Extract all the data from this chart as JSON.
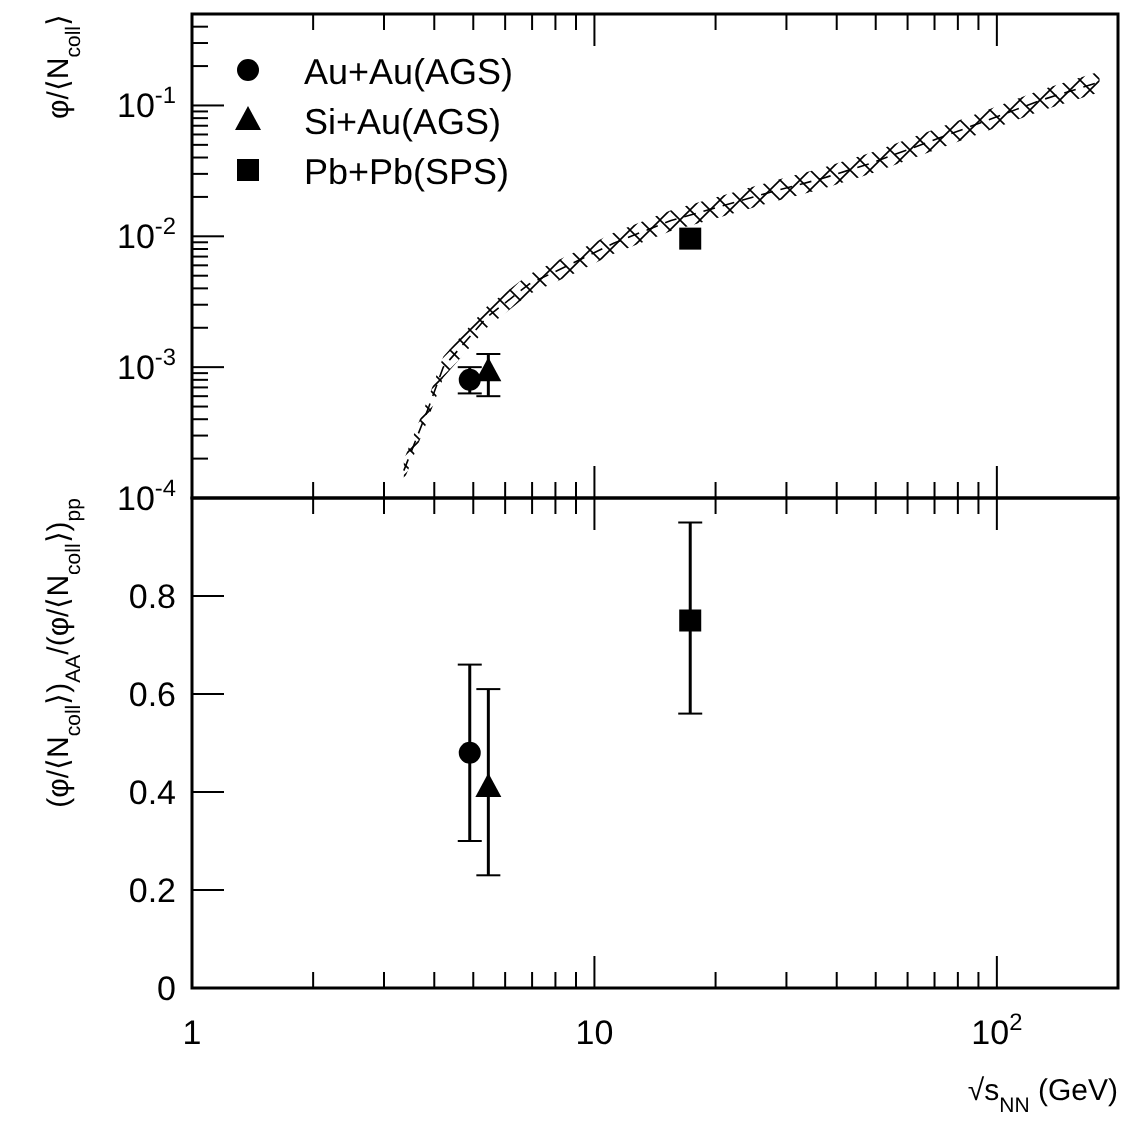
{
  "chart_data": [
    {
      "type": "scatter",
      "ylabel": "φ/⟨N$_{coll}$⟩",
      "log": "xy",
      "legend": "top left",
      "tick_labels": "y",
      "grid": false,
      "xlim": [
        1,
        200
      ],
      "xticks": [
        {
          "value": 2,
          "label": null
        },
        {
          "value": 3,
          "label": null
        },
        {
          "value": 4,
          "label": null
        },
        {
          "value": 5,
          "label": null
        },
        {
          "value": 6,
          "label": null
        },
        {
          "value": 7,
          "label": null
        },
        {
          "value": 8,
          "label": null
        },
        {
          "value": 9,
          "label": null
        },
        {
          "value": 10,
          "label": null
        },
        {
          "value": 20,
          "label": null
        },
        {
          "value": 30,
          "label": null
        },
        {
          "value": 40,
          "label": null
        },
        {
          "value": 50,
          "label": null
        },
        {
          "value": 60,
          "label": null
        },
        {
          "value": 70,
          "label": null
        },
        {
          "value": 80,
          "label": null
        },
        {
          "value": 90,
          "label": null
        },
        {
          "value": 100,
          "label": null
        }
      ],
      "ylim": [
        0.0001,
        0.5
      ],
      "yticks": [
        {
          "value": 0.0001,
          "label": "10$^{-4}$"
        },
        {
          "value": 0.0002,
          "label": null
        },
        {
          "value": 0.0003,
          "label": null
        },
        {
          "value": 0.0004,
          "label": null
        },
        {
          "value": 0.0005,
          "label": null
        },
        {
          "value": 0.0006,
          "label": null
        },
        {
          "value": 0.0007,
          "label": null
        },
        {
          "value": 0.0008,
          "label": null
        },
        {
          "value": 0.0009,
          "label": null
        },
        {
          "value": 0.001,
          "label": "10$^{-3}$"
        },
        {
          "value": 0.002,
          "label": null
        },
        {
          "value": 0.003,
          "label": null
        },
        {
          "value": 0.004,
          "label": null
        },
        {
          "value": 0.005,
          "label": null
        },
        {
          "value": 0.006,
          "label": null
        },
        {
          "value": 0.007,
          "label": null
        },
        {
          "value": 0.008,
          "label": null
        },
        {
          "value": 0.009,
          "label": null
        },
        {
          "value": 0.01,
          "label": "10$^{-2}$"
        },
        {
          "value": 0.02,
          "label": null
        },
        {
          "value": 0.03,
          "label": null
        },
        {
          "value": 0.04,
          "label": null
        },
        {
          "value": 0.05,
          "label": null
        },
        {
          "value": 0.06,
          "label": null
        },
        {
          "value": 0.07,
          "label": null
        },
        {
          "value": 0.08,
          "label": null
        },
        {
          "value": 0.09,
          "label": null
        },
        {
          "value": 0.1,
          "label": "10$^{-1}$"
        },
        {
          "value": 0.2,
          "label": null
        },
        {
          "value": 0.3,
          "label": null
        },
        {
          "value": 0.4,
          "label": null
        }
      ],
      "series": [
        {
          "type": "line",
          "color": "#000000",
          "line_style": "dashed",
          "marker": "none",
          "x": [
            3.36,
            3.88,
            4.21,
            5.4,
            6.87,
            8.8,
            11.2,
            15.5,
            20.7,
            27.6,
            36.6,
            48.8,
            67.6,
            93.5,
            129,
            180
          ],
          "values": [
            0.000162,
            0.0005,
            0.001,
            0.0024,
            0.0043,
            0.0062,
            0.0089,
            0.0132,
            0.017,
            0.0219,
            0.0275,
            0.0363,
            0.0525,
            0.076,
            0.11,
            0.151
          ],
          "lower": [
            0.000135,
            0.00042,
            0.00083,
            0.002,
            0.0036,
            0.0051,
            0.0074,
            0.011,
            0.0141,
            0.0182,
            0.0229,
            0.0302,
            0.0437,
            0.063,
            0.091,
            0.126
          ],
          "upper": [
            0.000195,
            0.0006,
            0.0012,
            0.0029,
            0.0051,
            0.0074,
            0.0107,
            0.0158,
            0.0204,
            0.0263,
            0.0331,
            0.0437,
            0.0631,
            0.091,
            0.132,
            0.182
          ]
        },
        {
          "name": "Au+Au(AGS)",
          "color": "#000000",
          "marker": "circle",
          "x": [
            4.9
          ],
          "values": [
            0.0008
          ],
          "errors": [
            [
              0.00063,
              0.001
            ]
          ]
        },
        {
          "name": "Si+Au(AGS)",
          "color": "#000000",
          "marker": "triangle",
          "x": [
            5.45
          ],
          "values": [
            0.00093
          ],
          "errors": [
            [
              0.0006,
              0.00126
            ]
          ]
        },
        {
          "name": "Pb+Pb(SPS)",
          "color": "#000000",
          "marker": "square",
          "x": [
            17.3
          ],
          "values": [
            0.0096
          ]
        }
      ]
    },
    {
      "type": "scatter",
      "xlabel": "√s$_{NN}$ (GeV)",
      "ylabel": "(φ/⟨N$_{coll}$⟩)$_{AA}$/(φ/⟨N$_{coll}$⟩)$_{pp}$",
      "log": "x",
      "grid": false,
      "xlim": [
        1,
        200
      ],
      "xticks": [
        1,
        {
          "value": 2,
          "label": null
        },
        {
          "value": 3,
          "label": null
        },
        {
          "value": 4,
          "label": null
        },
        {
          "value": 5,
          "label": null
        },
        {
          "value": 6,
          "label": null
        },
        {
          "value": 7,
          "label": null
        },
        {
          "value": 8,
          "label": null
        },
        {
          "value": 9,
          "label": null
        },
        10,
        {
          "value": 20,
          "label": null
        },
        {
          "value": 30,
          "label": null
        },
        {
          "value": 40,
          "label": null
        },
        {
          "value": 50,
          "label": null
        },
        {
          "value": 60,
          "label": null
        },
        {
          "value": 70,
          "label": null
        },
        {
          "value": 80,
          "label": null
        },
        {
          "value": 90,
          "label": null
        },
        {
          "value": 100,
          "label": "10$^{2}$"
        }
      ],
      "ylim": [
        0,
        1
      ],
      "yticks": [
        0,
        0.2,
        0.4,
        0.6,
        0.8
      ],
      "series": [
        {
          "color": "#000000",
          "marker": "circle",
          "x": [
            4.9
          ],
          "values": [
            0.48
          ],
          "errors": [
            [
              0.3,
              0.66
            ]
          ]
        },
        {
          "color": "#000000",
          "marker": "triangle",
          "x": [
            5.45
          ],
          "values": [
            0.41
          ],
          "errors": [
            [
              0.23,
              0.61
            ]
          ]
        },
        {
          "color": "#000000",
          "marker": "square",
          "x": [
            17.3
          ],
          "values": [
            0.75
          ],
          "errors": [
            [
              0.56,
              0.95
            ]
          ]
        }
      ]
    }
  ]
}
